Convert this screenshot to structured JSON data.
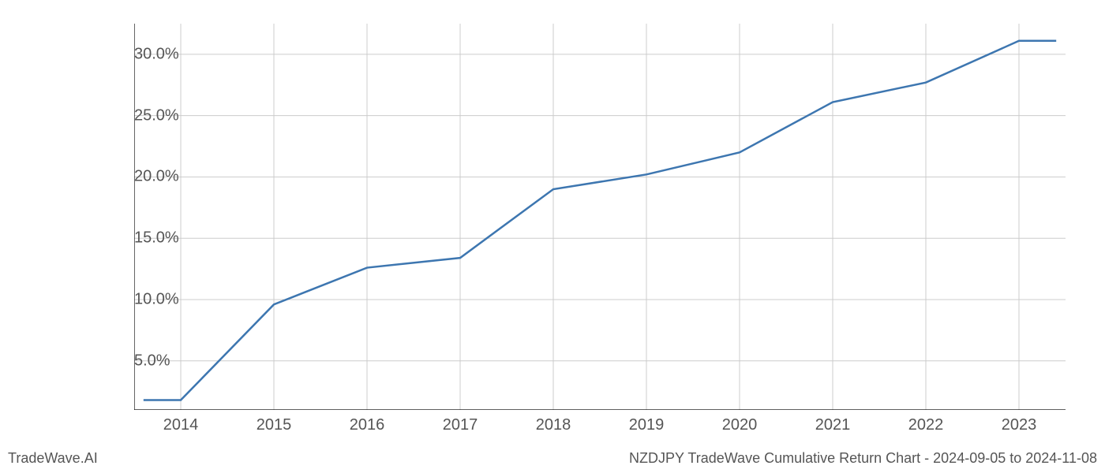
{
  "chart": {
    "type": "line",
    "background_color": "#ffffff",
    "grid_color": "#cccccc",
    "axis_color": "#000000",
    "line_color": "#3d76b0",
    "line_width": 2.5,
    "tick_label_color": "#555555",
    "tick_label_fontsize": 20,
    "footer_fontsize": 18,
    "footer_color": "#555555",
    "x_values": [
      2013.6,
      2014,
      2015,
      2016,
      2017,
      2018,
      2019,
      2020,
      2021,
      2022,
      2023,
      2023.4
    ],
    "y_values": [
      1.8,
      1.8,
      9.6,
      12.6,
      13.4,
      19.0,
      20.2,
      22.0,
      26.1,
      27.7,
      31.1,
      31.1
    ],
    "x_ticks": [
      2014,
      2015,
      2016,
      2017,
      2018,
      2019,
      2020,
      2021,
      2022,
      2023
    ],
    "x_tick_labels": [
      "2014",
      "2015",
      "2016",
      "2017",
      "2018",
      "2019",
      "2020",
      "2021",
      "2022",
      "2023"
    ],
    "y_ticks": [
      5,
      10,
      15,
      20,
      25,
      30
    ],
    "y_tick_labels": [
      "5.0%",
      "10.0%",
      "15.0%",
      "20.0%",
      "25.0%",
      "30.0%"
    ],
    "xlim": [
      2013.5,
      2023.5
    ],
    "ylim": [
      1.0,
      32.5
    ]
  },
  "footer": {
    "left": "TradeWave.AI",
    "right": "NZDJPY TradeWave Cumulative Return Chart - 2024-09-05 to 2024-11-08"
  }
}
